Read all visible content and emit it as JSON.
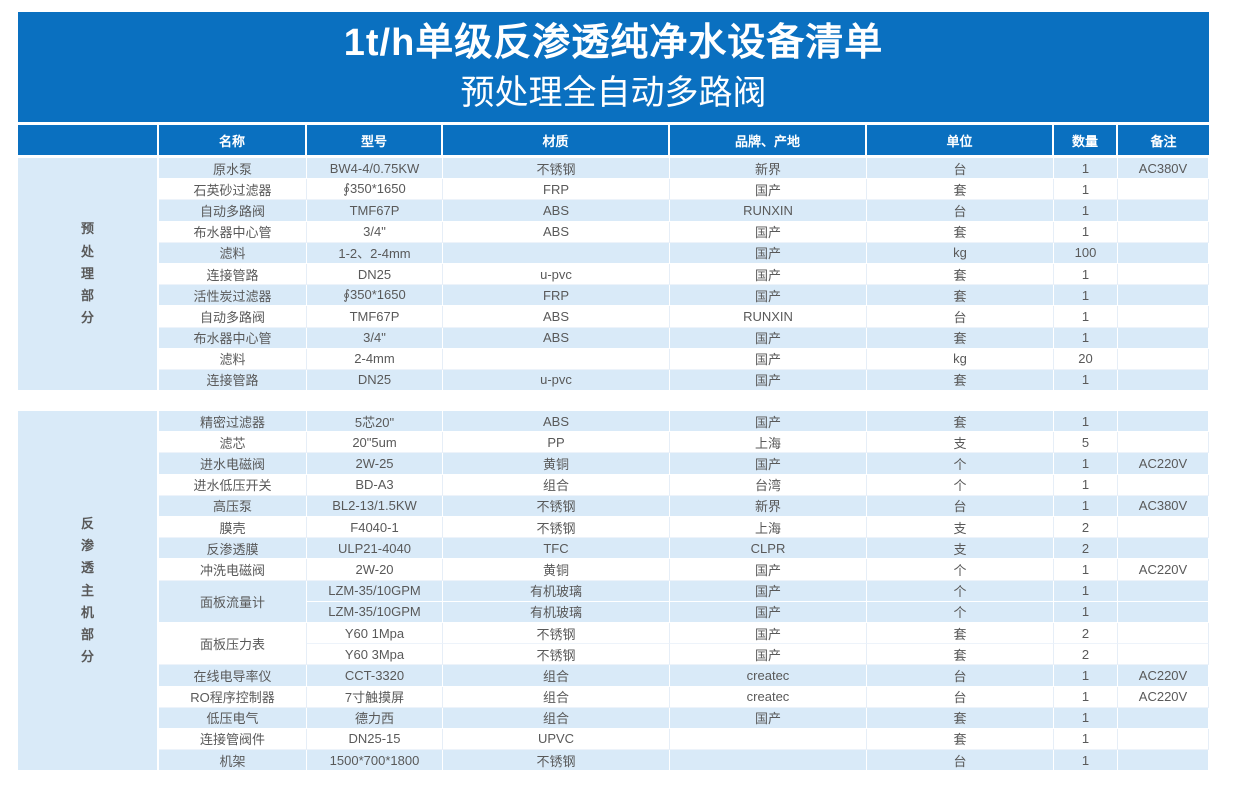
{
  "title": {
    "line1": "1t/h单级反渗透纯净水设备清单",
    "line2": "预处理全自动多路阀"
  },
  "columns": [
    "名称",
    "型号",
    "材质",
    "品牌、产地",
    "单位",
    "数量",
    "备注"
  ],
  "colors": {
    "banner_blue": "#0A70C0",
    "row_alt_blue": "#D9EAF8",
    "header_text": "#FFFFFF",
    "body_text": "#595959"
  },
  "sections": [
    {
      "label": "预处理部分",
      "items": [
        {
          "name": "原水泵",
          "model": "BW4-4/0.75KW",
          "material": "不锈钢",
          "brand": "新界",
          "unit": "台",
          "qty": "1",
          "note": "AC380V"
        },
        {
          "name": "石英砂过滤器",
          "model": "∮350*1650",
          "material": "FRP",
          "brand": "国产",
          "unit": "套",
          "qty": "1",
          "note": ""
        },
        {
          "name": "自动多路阀",
          "model": "TMF67P",
          "material": "ABS",
          "brand": "RUNXIN",
          "unit": "台",
          "qty": "1",
          "note": ""
        },
        {
          "name": "布水器中心管",
          "model": "3/4\"",
          "material": "ABS",
          "brand": "国产",
          "unit": "套",
          "qty": "1",
          "note": ""
        },
        {
          "name": "滤料",
          "model": "1-2、2-4mm",
          "material": "",
          "brand": "国产",
          "unit": "kg",
          "qty": "100",
          "note": ""
        },
        {
          "name": "连接管路",
          "model": "DN25",
          "material": "u-pvc",
          "brand": "国产",
          "unit": "套",
          "qty": "1",
          "note": ""
        },
        {
          "name": "活性炭过滤器",
          "model": "∮350*1650",
          "material": "FRP",
          "brand": "国产",
          "unit": "套",
          "qty": "1",
          "note": ""
        },
        {
          "name": "自动多路阀",
          "model": "TMF67P",
          "material": "ABS",
          "brand": "RUNXIN",
          "unit": "台",
          "qty": "1",
          "note": ""
        },
        {
          "name": "布水器中心管",
          "model": "3/4\"",
          "material": "ABS",
          "brand": "国产",
          "unit": "套",
          "qty": "1",
          "note": ""
        },
        {
          "name": "滤料",
          "model": "2-4mm",
          "material": "",
          "brand": "国产",
          "unit": "kg",
          "qty": "20",
          "note": ""
        },
        {
          "name": "连接管路",
          "model": "DN25",
          "material": "u-pvc",
          "brand": "国产",
          "unit": "套",
          "qty": "1",
          "note": ""
        }
      ]
    },
    {
      "label": "反渗透主机部分",
      "items": [
        {
          "name": "精密过滤器",
          "model": "5芯20\"",
          "material": "ABS",
          "brand": "国产",
          "unit": "套",
          "qty": "1",
          "note": ""
        },
        {
          "name": "滤芯",
          "model": "20\"5um",
          "material": "PP",
          "brand": "上海",
          "unit": "支",
          "qty": "5",
          "note": ""
        },
        {
          "name": "进水电磁阀",
          "model": "2W-25",
          "material": "黄铜",
          "brand": "国产",
          "unit": "个",
          "qty": "1",
          "note": "AC220V"
        },
        {
          "name": "进水低压开关",
          "model": "BD-A3",
          "material": "组合",
          "brand": "台湾",
          "unit": "个",
          "qty": "1",
          "note": ""
        },
        {
          "name": "高压泵",
          "model": "BL2-13/1.5KW",
          "material": "不锈钢",
          "brand": "新界",
          "unit": "台",
          "qty": "1",
          "note": "AC380V"
        },
        {
          "name": "膜壳",
          "model": "F4040-1",
          "material": "不锈钢",
          "brand": "上海",
          "unit": "支",
          "qty": "2",
          "note": ""
        },
        {
          "name": "反渗透膜",
          "model": "ULP21-4040",
          "material": "TFC",
          "brand": "CLPR",
          "unit": "支",
          "qty": "2",
          "note": ""
        },
        {
          "name": "冲洗电磁阀",
          "model": "2W-20",
          "material": "黄铜",
          "brand": "国产",
          "unit": "个",
          "qty": "1",
          "note": "AC220V"
        },
        {
          "name": "面板流量计",
          "rows": [
            {
              "model": "LZM-35/10GPM",
              "material": "有机玻璃",
              "brand": "国产",
              "unit": "个",
              "qty": "1",
              "note": ""
            },
            {
              "model": "LZM-35/10GPM",
              "material": "有机玻璃",
              "brand": "国产",
              "unit": "个",
              "qty": "1",
              "note": ""
            }
          ]
        },
        {
          "name": "面板压力表",
          "rows": [
            {
              "model": "Y60 1Mpa",
              "material": "不锈钢",
              "brand": "国产",
              "unit": "套",
              "qty": "2",
              "note": ""
            },
            {
              "model": "Y60 3Mpa",
              "material": "不锈钢",
              "brand": "国产",
              "unit": "套",
              "qty": "2",
              "note": ""
            }
          ]
        },
        {
          "name": "在线电导率仪",
          "model": "CCT-3320",
          "material": "组合",
          "brand": "createc",
          "unit": "台",
          "qty": "1",
          "note": "AC220V"
        },
        {
          "name": "RO程序控制器",
          "model": "7寸触摸屏",
          "material": "组合",
          "brand": "createc",
          "unit": "台",
          "qty": "1",
          "note": "AC220V"
        },
        {
          "name": "低压电气",
          "model": "德力西",
          "material": "组合",
          "brand": "国产",
          "unit": "套",
          "qty": "1",
          "note": ""
        },
        {
          "name": "连接管阀件",
          "model": "DN25-15",
          "material": "UPVC",
          "brand": "",
          "unit": "套",
          "qty": "1",
          "note": ""
        },
        {
          "name": "机架",
          "model": "1500*700*1800",
          "material": "不锈钢",
          "brand": "",
          "unit": "台",
          "qty": "1",
          "note": ""
        }
      ]
    }
  ]
}
